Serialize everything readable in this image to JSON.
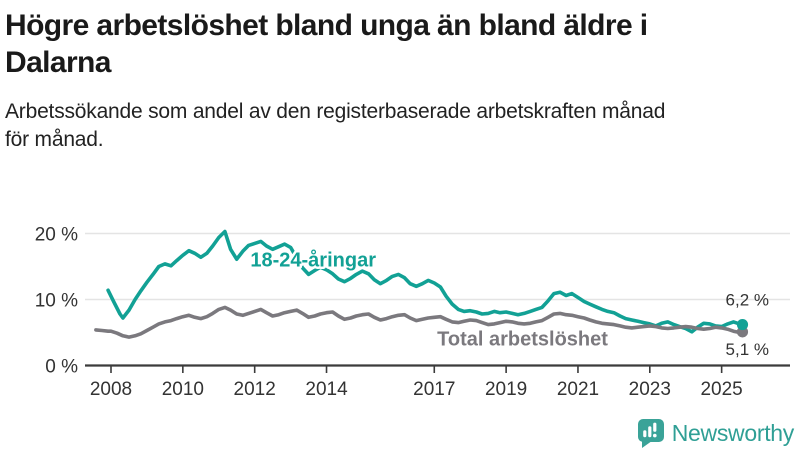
{
  "header": {
    "title_line1": "Högre arbetslöshet bland unga än bland äldre i",
    "title_line2": "Dalarna",
    "subtitle_line1": "Arbetssökande som andel av den registerbaserade arbetskraften månad",
    "subtitle_line2": "för månad."
  },
  "chart_data": {
    "type": "line",
    "title": "Högre arbetslöshet bland unga än bland äldre i Dalarna",
    "subtitle": "Arbetssökande som andel av den registerbaserade arbetskraften månad för månad.",
    "unit": "%",
    "grid": "horizontal",
    "legend_position": "inline-labels",
    "xlim": [
      2007.5,
      2025.8
    ],
    "ylim": [
      0,
      21
    ],
    "x_ticks": [
      2008,
      2010,
      2012,
      2014,
      2017,
      2019,
      2021,
      2023,
      2025
    ],
    "y_ticks": [
      {
        "value": 0,
        "label": "0 %"
      },
      {
        "value": 10,
        "label": "10 %"
      },
      {
        "value": 20,
        "label": "20 %"
      }
    ],
    "axis_color": "#3b3b3b",
    "grid_color": "#e4e4e4",
    "series": [
      {
        "name": "18-24-åringar",
        "color": "#12a195",
        "end_label": "6,2 %",
        "end_value": 6.2,
        "end_label_dy": -19,
        "label_at": {
          "t": 2011.88,
          "v": 15.0
        },
        "points": [
          [
            2007.92,
            11.4
          ],
          [
            2008.08,
            9.6
          ],
          [
            2008.25,
            7.8
          ],
          [
            2008.33,
            7.2
          ],
          [
            2008.5,
            8.4
          ],
          [
            2008.67,
            10.0
          ],
          [
            2008.83,
            11.3
          ],
          [
            2009.0,
            12.6
          ],
          [
            2009.17,
            13.8
          ],
          [
            2009.33,
            15.0
          ],
          [
            2009.5,
            15.4
          ],
          [
            2009.67,
            15.1
          ],
          [
            2009.83,
            15.9
          ],
          [
            2010.0,
            16.7
          ],
          [
            2010.17,
            17.4
          ],
          [
            2010.33,
            17.0
          ],
          [
            2010.5,
            16.4
          ],
          [
            2010.67,
            17.0
          ],
          [
            2010.83,
            18.1
          ],
          [
            2011.0,
            19.4
          ],
          [
            2011.17,
            20.3
          ],
          [
            2011.33,
            17.6
          ],
          [
            2011.5,
            16.1
          ],
          [
            2011.67,
            17.3
          ],
          [
            2011.83,
            18.2
          ],
          [
            2012.0,
            18.5
          ],
          [
            2012.17,
            18.8
          ],
          [
            2012.33,
            18.1
          ],
          [
            2012.5,
            17.6
          ],
          [
            2012.67,
            18.0
          ],
          [
            2012.83,
            18.4
          ],
          [
            2013.0,
            17.9
          ],
          [
            2013.17,
            16.3
          ],
          [
            2013.33,
            14.8
          ],
          [
            2013.5,
            13.8
          ],
          [
            2013.67,
            14.4
          ],
          [
            2013.83,
            14.9
          ],
          [
            2014.0,
            14.5
          ],
          [
            2014.17,
            13.9
          ],
          [
            2014.33,
            13.1
          ],
          [
            2014.5,
            12.7
          ],
          [
            2014.67,
            13.2
          ],
          [
            2014.83,
            13.8
          ],
          [
            2015.0,
            14.3
          ],
          [
            2015.17,
            13.9
          ],
          [
            2015.33,
            13.0
          ],
          [
            2015.5,
            12.4
          ],
          [
            2015.67,
            12.9
          ],
          [
            2015.83,
            13.5
          ],
          [
            2016.0,
            13.8
          ],
          [
            2016.17,
            13.3
          ],
          [
            2016.33,
            12.4
          ],
          [
            2016.5,
            12.0
          ],
          [
            2016.67,
            12.4
          ],
          [
            2016.83,
            12.9
          ],
          [
            2017.0,
            12.5
          ],
          [
            2017.17,
            11.9
          ],
          [
            2017.33,
            10.5
          ],
          [
            2017.5,
            9.3
          ],
          [
            2017.67,
            8.5
          ],
          [
            2017.83,
            8.2
          ],
          [
            2018.0,
            8.3
          ],
          [
            2018.17,
            8.1
          ],
          [
            2018.33,
            7.8
          ],
          [
            2018.5,
            7.9
          ],
          [
            2018.67,
            8.2
          ],
          [
            2018.83,
            8.0
          ],
          [
            2019.0,
            8.1
          ],
          [
            2019.17,
            7.9
          ],
          [
            2019.33,
            7.7
          ],
          [
            2019.5,
            7.9
          ],
          [
            2019.67,
            8.2
          ],
          [
            2019.83,
            8.5
          ],
          [
            2020.0,
            8.8
          ],
          [
            2020.17,
            9.8
          ],
          [
            2020.33,
            10.9
          ],
          [
            2020.5,
            11.1
          ],
          [
            2020.67,
            10.6
          ],
          [
            2020.83,
            10.9
          ],
          [
            2021.0,
            10.3
          ],
          [
            2021.17,
            9.7
          ],
          [
            2021.33,
            9.3
          ],
          [
            2021.5,
            8.9
          ],
          [
            2021.67,
            8.5
          ],
          [
            2021.83,
            8.2
          ],
          [
            2022.0,
            8.0
          ],
          [
            2022.17,
            7.5
          ],
          [
            2022.33,
            7.1
          ],
          [
            2022.5,
            6.9
          ],
          [
            2022.67,
            6.7
          ],
          [
            2022.83,
            6.5
          ],
          [
            2023.0,
            6.3
          ],
          [
            2023.17,
            6.0
          ],
          [
            2023.33,
            6.4
          ],
          [
            2023.5,
            6.6
          ],
          [
            2023.67,
            6.2
          ],
          [
            2023.83,
            5.9
          ],
          [
            2024.0,
            5.6
          ],
          [
            2024.17,
            5.1
          ],
          [
            2024.33,
            5.8
          ],
          [
            2024.5,
            6.4
          ],
          [
            2024.67,
            6.3
          ],
          [
            2024.83,
            6.0
          ],
          [
            2025.0,
            5.9
          ],
          [
            2025.17,
            6.3
          ],
          [
            2025.33,
            6.6
          ],
          [
            2025.5,
            6.3
          ],
          [
            2025.58,
            6.2
          ]
        ]
      },
      {
        "name": "Total arbetslöshet",
        "color": "#7b797e",
        "end_label": "5,1 %",
        "end_value": 5.1,
        "end_label_dy": 23,
        "label_at": {
          "t": 2017.08,
          "v": 3.0
        },
        "points": [
          [
            2007.58,
            5.4
          ],
          [
            2007.75,
            5.3
          ],
          [
            2007.92,
            5.2
          ],
          [
            2008.0,
            5.2
          ],
          [
            2008.17,
            4.9
          ],
          [
            2008.33,
            4.5
          ],
          [
            2008.5,
            4.3
          ],
          [
            2008.67,
            4.5
          ],
          [
            2008.83,
            4.8
          ],
          [
            2009.0,
            5.3
          ],
          [
            2009.17,
            5.8
          ],
          [
            2009.33,
            6.3
          ],
          [
            2009.5,
            6.6
          ],
          [
            2009.67,
            6.8
          ],
          [
            2009.83,
            7.1
          ],
          [
            2010.0,
            7.4
          ],
          [
            2010.17,
            7.6
          ],
          [
            2010.33,
            7.3
          ],
          [
            2010.5,
            7.1
          ],
          [
            2010.67,
            7.4
          ],
          [
            2010.83,
            7.9
          ],
          [
            2011.0,
            8.5
          ],
          [
            2011.17,
            8.8
          ],
          [
            2011.33,
            8.4
          ],
          [
            2011.5,
            7.8
          ],
          [
            2011.67,
            7.6
          ],
          [
            2011.83,
            7.9
          ],
          [
            2012.0,
            8.2
          ],
          [
            2012.17,
            8.5
          ],
          [
            2012.33,
            8.0
          ],
          [
            2012.5,
            7.5
          ],
          [
            2012.67,
            7.7
          ],
          [
            2012.83,
            8.0
          ],
          [
            2013.0,
            8.2
          ],
          [
            2013.17,
            8.4
          ],
          [
            2013.33,
            7.9
          ],
          [
            2013.5,
            7.3
          ],
          [
            2013.67,
            7.5
          ],
          [
            2013.83,
            7.8
          ],
          [
            2014.0,
            8.0
          ],
          [
            2014.17,
            8.1
          ],
          [
            2014.33,
            7.5
          ],
          [
            2014.5,
            7.0
          ],
          [
            2014.67,
            7.2
          ],
          [
            2014.83,
            7.5
          ],
          [
            2015.0,
            7.7
          ],
          [
            2015.17,
            7.8
          ],
          [
            2015.33,
            7.3
          ],
          [
            2015.5,
            6.9
          ],
          [
            2015.67,
            7.1
          ],
          [
            2015.83,
            7.4
          ],
          [
            2016.0,
            7.6
          ],
          [
            2016.17,
            7.7
          ],
          [
            2016.33,
            7.2
          ],
          [
            2016.5,
            6.8
          ],
          [
            2016.67,
            7.0
          ],
          [
            2016.83,
            7.2
          ],
          [
            2017.0,
            7.3
          ],
          [
            2017.17,
            7.4
          ],
          [
            2017.33,
            7.0
          ],
          [
            2017.5,
            6.6
          ],
          [
            2017.67,
            6.5
          ],
          [
            2017.83,
            6.7
          ],
          [
            2018.0,
            6.9
          ],
          [
            2018.17,
            6.8
          ],
          [
            2018.33,
            6.5
          ],
          [
            2018.5,
            6.2
          ],
          [
            2018.67,
            6.3
          ],
          [
            2018.83,
            6.5
          ],
          [
            2019.0,
            6.7
          ],
          [
            2019.17,
            6.6
          ],
          [
            2019.33,
            6.4
          ],
          [
            2019.5,
            6.3
          ],
          [
            2019.67,
            6.4
          ],
          [
            2019.83,
            6.6
          ],
          [
            2020.0,
            6.8
          ],
          [
            2020.17,
            7.3
          ],
          [
            2020.33,
            7.8
          ],
          [
            2020.5,
            7.9
          ],
          [
            2020.67,
            7.7
          ],
          [
            2020.83,
            7.6
          ],
          [
            2021.0,
            7.4
          ],
          [
            2021.17,
            7.2
          ],
          [
            2021.33,
            6.9
          ],
          [
            2021.5,
            6.6
          ],
          [
            2021.67,
            6.4
          ],
          [
            2021.83,
            6.3
          ],
          [
            2022.0,
            6.2
          ],
          [
            2022.17,
            6.0
          ],
          [
            2022.33,
            5.8
          ],
          [
            2022.5,
            5.7
          ],
          [
            2022.67,
            5.8
          ],
          [
            2022.83,
            5.9
          ],
          [
            2023.0,
            6.0
          ],
          [
            2023.17,
            5.9
          ],
          [
            2023.33,
            5.7
          ],
          [
            2023.5,
            5.6
          ],
          [
            2023.67,
            5.7
          ],
          [
            2023.83,
            5.8
          ],
          [
            2024.0,
            5.9
          ],
          [
            2024.17,
            5.8
          ],
          [
            2024.33,
            5.6
          ],
          [
            2024.5,
            5.5
          ],
          [
            2024.67,
            5.6
          ],
          [
            2024.83,
            5.8
          ],
          [
            2025.0,
            5.7
          ],
          [
            2025.17,
            5.5
          ],
          [
            2025.33,
            5.2
          ],
          [
            2025.5,
            5.0
          ],
          [
            2025.58,
            5.1
          ]
        ]
      }
    ]
  },
  "footer": {
    "logo_text": "Newsworthy",
    "logo_text_color": "#2f9f95",
    "logo_icon_color": "#3aa398"
  }
}
